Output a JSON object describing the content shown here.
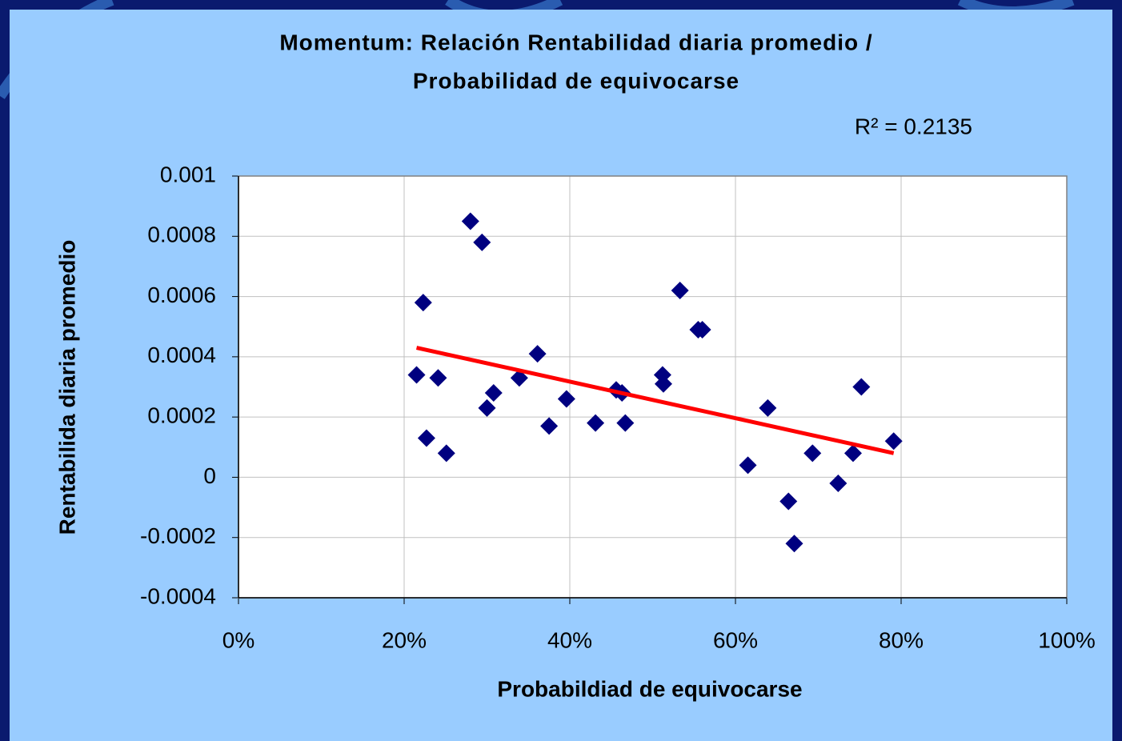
{
  "chart_data": {
    "type": "scatter",
    "title": [
      "Momentum: Relación Rentabilidad diaria promedio /",
      "Probabilidad de equivocarse"
    ],
    "x_label": "Probabildiad de equivocarse",
    "y_label": "Rentabilida diaria promedio",
    "annotation": "R² = 0.2135",
    "x": [
      21.5,
      22.3,
      22.7,
      24.1,
      25.1,
      28.0,
      29.4,
      30.0,
      30.8,
      33.9,
      36.1,
      37.5,
      39.6,
      43.1,
      45.6,
      46.3,
      46.7,
      51.2,
      51.3,
      53.3,
      55.5,
      56.0,
      61.5,
      63.9,
      66.4,
      67.1,
      69.3,
      72.4,
      74.2,
      75.2,
      79.1
    ],
    "values": [
      0.00034,
      0.00058,
      0.00013,
      0.00033,
      8e-05,
      0.00085,
      0.00078,
      0.00023,
      0.00028,
      0.00033,
      0.00041,
      0.00017,
      0.00026,
      0.00018,
      0.00029,
      0.00028,
      0.00018,
      0.00034,
      0.00031,
      0.00062,
      0.00049,
      0.00049,
      4e-05,
      0.00023,
      -8e-05,
      -0.00022,
      8e-05,
      -2e-05,
      8e-05,
      0.0003,
      0.00012
    ],
    "color": "#000080",
    "trendline": {
      "x": [
        21.5,
        79.1
      ],
      "values": [
        0.00043,
        8e-05
      ],
      "color": "#ff0000"
    },
    "xlim": [
      0,
      100
    ],
    "xticks": [
      {
        "value": 0,
        "label": "0%"
      },
      {
        "value": 20,
        "label": "20%"
      },
      {
        "value": 40,
        "label": "40%"
      },
      {
        "value": 60,
        "label": "60%"
      },
      {
        "value": 80,
        "label": "80%"
      },
      {
        "value": 100,
        "label": "100%"
      }
    ],
    "ylim": [
      -0.0004,
      0.001
    ],
    "yticks": [
      -0.0004,
      -0.0002,
      0,
      0.0002,
      0.0004,
      0.0006,
      0.0008,
      0.001
    ],
    "grid": true
  }
}
